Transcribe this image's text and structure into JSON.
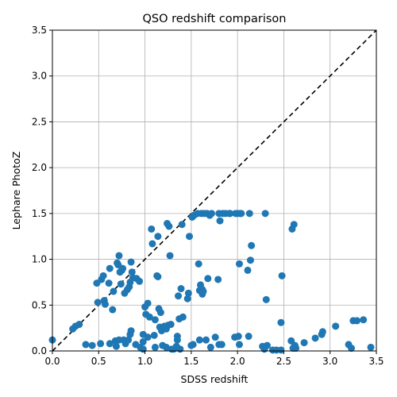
{
  "chart_data": {
    "type": "scatter",
    "title": "QSO redshift comparison",
    "xlabel": "SDSS redshift",
    "ylabel": "Lephare PhotoZ",
    "xlim": [
      0.0,
      3.5
    ],
    "ylim": [
      0.0,
      3.5
    ],
    "xticks": [
      "0.0",
      "0.5",
      "1.0",
      "1.5",
      "2.0",
      "2.5",
      "3.0",
      "3.5"
    ],
    "yticks": [
      "0.0",
      "0.5",
      "1.0",
      "1.5",
      "2.0",
      "2.5",
      "3.0",
      "3.5"
    ],
    "grid": true,
    "reference_line": {
      "style": "dashed",
      "color": "#000000",
      "from": [
        0,
        0
      ],
      "to": [
        3.5,
        3.5
      ]
    },
    "marker_color": "#1f77b4",
    "points": [
      [
        0.0,
        0.12
      ],
      [
        0.22,
        0.24
      ],
      [
        0.25,
        0.27
      ],
      [
        0.29,
        0.29
      ],
      [
        0.36,
        0.07
      ],
      [
        0.43,
        0.06
      ],
      [
        0.48,
        0.74
      ],
      [
        0.49,
        0.53
      ],
      [
        0.52,
        0.08
      ],
      [
        0.53,
        0.78
      ],
      [
        0.55,
        0.82
      ],
      [
        0.56,
        0.55
      ],
      [
        0.57,
        0.51
      ],
      [
        0.61,
        0.74
      ],
      [
        0.62,
        0.08
      ],
      [
        0.62,
        0.9
      ],
      [
        0.65,
        0.45
      ],
      [
        0.66,
        0.65
      ],
      [
        0.68,
        0.11
      ],
      [
        0.69,
        0.05
      ],
      [
        0.7,
        0.96
      ],
      [
        0.71,
        0.94
      ],
      [
        0.72,
        1.04
      ],
      [
        0.72,
        0.12
      ],
      [
        0.73,
        0.86
      ],
      [
        0.74,
        0.73
      ],
      [
        0.75,
        0.88
      ],
      [
        0.76,
        0.9
      ],
      [
        0.77,
        0.12
      ],
      [
        0.78,
        0.63
      ],
      [
        0.79,
        0.08
      ],
      [
        0.81,
        0.67
      ],
      [
        0.82,
        0.12
      ],
      [
        0.83,
        0.7
      ],
      [
        0.84,
        0.18
      ],
      [
        0.84,
        0.75
      ],
      [
        0.85,
        0.97
      ],
      [
        0.85,
        0.22
      ],
      [
        0.86,
        0.86
      ],
      [
        0.87,
        0.8
      ],
      [
        0.9,
        0.07
      ],
      [
        0.91,
        0.79
      ],
      [
        0.94,
        0.76
      ],
      [
        0.95,
        0.04
      ],
      [
        0.98,
        0.1
      ],
      [
        0.98,
        0.18
      ],
      [
        0.98,
        0.02
      ],
      [
        1.0,
        0.48
      ],
      [
        1.01,
        0.4
      ],
      [
        1.03,
        0.52
      ],
      [
        1.03,
        0.15
      ],
      [
        1.05,
        0.37
      ],
      [
        1.07,
        1.33
      ],
      [
        1.08,
        1.17
      ],
      [
        1.1,
        0.17
      ],
      [
        1.11,
        0.34
      ],
      [
        1.11,
        0.04
      ],
      [
        1.13,
        0.82
      ],
      [
        1.14,
        0.81
      ],
      [
        1.14,
        1.25
      ],
      [
        1.15,
        0.46
      ],
      [
        1.16,
        0.26
      ],
      [
        1.17,
        0.42
      ],
      [
        1.18,
        0.22
      ],
      [
        1.19,
        0.06
      ],
      [
        1.2,
        0.24
      ],
      [
        1.21,
        0.27
      ],
      [
        1.23,
        0.04
      ],
      [
        1.23,
        0.24
      ],
      [
        1.24,
        1.39
      ],
      [
        1.25,
        0.28
      ],
      [
        1.26,
        1.36
      ],
      [
        1.27,
        1.04
      ],
      [
        1.28,
        0.29
      ],
      [
        1.29,
        0.02
      ],
      [
        1.31,
        0.02
      ],
      [
        1.34,
        0.05
      ],
      [
        1.35,
        0.16
      ],
      [
        1.35,
        0.12
      ],
      [
        1.36,
        0.6
      ],
      [
        1.37,
        0.35
      ],
      [
        1.38,
        0.02
      ],
      [
        1.39,
        0.68
      ],
      [
        1.4,
        1.38
      ],
      [
        1.41,
        0.37
      ],
      [
        1.46,
        0.57
      ],
      [
        1.47,
        0.63
      ],
      [
        1.48,
        1.25
      ],
      [
        1.5,
        0.06
      ],
      [
        1.51,
        1.46
      ],
      [
        1.52,
        0.07
      ],
      [
        1.53,
        1.48
      ],
      [
        1.57,
        1.5
      ],
      [
        1.58,
        0.95
      ],
      [
        1.59,
        0.66
      ],
      [
        1.59,
        0.12
      ],
      [
        1.6,
        0.72
      ],
      [
        1.61,
        1.5
      ],
      [
        1.62,
        0.67
      ],
      [
        1.62,
        0.62
      ],
      [
        1.63,
        0.65
      ],
      [
        1.64,
        1.5
      ],
      [
        1.66,
        0.12
      ],
      [
        1.67,
        1.5
      ],
      [
        1.68,
        0.79
      ],
      [
        1.7,
        1.48
      ],
      [
        1.71,
        0.04
      ],
      [
        1.72,
        1.5
      ],
      [
        1.76,
        0.15
      ],
      [
        1.79,
        0.78
      ],
      [
        1.8,
        0.07
      ],
      [
        1.8,
        1.5
      ],
      [
        1.81,
        1.42
      ],
      [
        1.83,
        0.07
      ],
      [
        1.84,
        1.5
      ],
      [
        1.87,
        1.5
      ],
      [
        1.91,
        1.5
      ],
      [
        1.92,
        1.5
      ],
      [
        1.97,
        0.15
      ],
      [
        1.98,
        1.5
      ],
      [
        2.0,
        1.5
      ],
      [
        2.01,
        0.16
      ],
      [
        2.02,
        0.95
      ],
      [
        2.02,
        0.07
      ],
      [
        2.03,
        1.5
      ],
      [
        2.04,
        1.5
      ],
      [
        2.11,
        0.88
      ],
      [
        2.12,
        0.16
      ],
      [
        2.13,
        1.5
      ],
      [
        2.14,
        0.99
      ],
      [
        2.15,
        1.15
      ],
      [
        2.27,
        0.05
      ],
      [
        2.29,
        0.02
      ],
      [
        2.3,
        1.5
      ],
      [
        2.31,
        0.56
      ],
      [
        2.32,
        0.06
      ],
      [
        2.38,
        0.01
      ],
      [
        2.42,
        0.01
      ],
      [
        2.47,
        0.01
      ],
      [
        2.47,
        0.31
      ],
      [
        2.48,
        0.82
      ],
      [
        2.58,
        0.11
      ],
      [
        2.59,
        1.33
      ],
      [
        2.6,
        0.03
      ],
      [
        2.61,
        1.38
      ],
      [
        2.62,
        0.06
      ],
      [
        2.63,
        0.03
      ],
      [
        2.72,
        0.09
      ],
      [
        2.84,
        0.14
      ],
      [
        2.91,
        0.18
      ],
      [
        2.92,
        0.21
      ],
      [
        3.06,
        0.27
      ],
      [
        3.2,
        0.07
      ],
      [
        3.23,
        0.03
      ],
      [
        3.25,
        0.33
      ],
      [
        3.29,
        0.33
      ],
      [
        3.36,
        0.34
      ],
      [
        3.44,
        0.04
      ]
    ]
  }
}
